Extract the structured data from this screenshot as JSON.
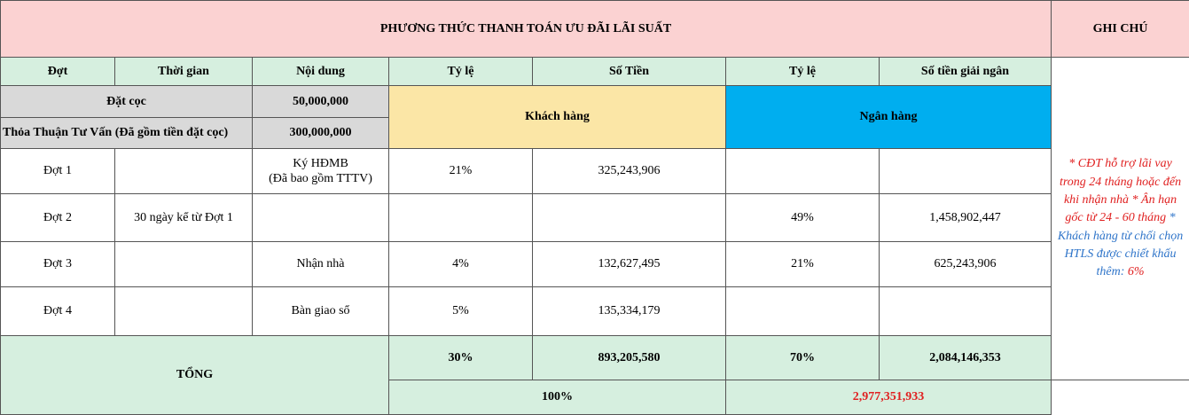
{
  "header": {
    "title": "PHƯƠNG THỨC THANH TOÁN ƯU ĐÃI LÃI SUẤT",
    "note_title": "GHI CHÚ"
  },
  "columns": {
    "dot": "Đợt",
    "thoi_gian": "Thời gian",
    "noi_dung": "Nội dung",
    "ty_le_kh": "Tỷ lệ",
    "so_tien": "Số Tiền",
    "ty_le_nh": "Tỷ lệ",
    "so_tien_giai_ngan": "Số tiền giải ngân"
  },
  "deposit": {
    "label": "Đặt cọc",
    "value": "50,000,000"
  },
  "consult": {
    "label": "Thỏa Thuận Tư Vấn (Đã gồm tiền đặt cọc)",
    "value": "300,000,000"
  },
  "groups": {
    "customer": "Khách hàng",
    "bank": "Ngân hàng"
  },
  "rows": [
    {
      "dot": "Đợt 1",
      "thoi_gian": "",
      "noi_dung_1": "Ký HĐMB",
      "noi_dung_2": "(Đã bao gồm TTTV)",
      "ty_le_kh": "21%",
      "so_tien": "325,243,906",
      "ty_le_nh": "",
      "giai_ngan": ""
    },
    {
      "dot": "Đợt 2",
      "thoi_gian": "30 ngày kể từ Đợt 1",
      "noi_dung_1": "",
      "noi_dung_2": "",
      "ty_le_kh": "",
      "so_tien": "",
      "ty_le_nh": "49%",
      "giai_ngan": "1,458,902,447"
    },
    {
      "dot": "Đợt 3",
      "thoi_gian": "",
      "noi_dung_1": "Nhận nhà",
      "noi_dung_2": "",
      "ty_le_kh": "4%",
      "so_tien": "132,627,495",
      "ty_le_nh": "21%",
      "giai_ngan": "625,243,906"
    },
    {
      "dot": "Đợt 4",
      "thoi_gian": "",
      "noi_dung_1": "Bàn giao sổ",
      "noi_dung_2": "",
      "ty_le_kh": "5%",
      "so_tien": "135,334,179",
      "ty_le_nh": "",
      "giai_ngan": ""
    }
  ],
  "total": {
    "label": "TỔNG",
    "ty_le_kh": "30%",
    "so_tien_kh": "893,205,580",
    "ty_le_nh": "70%",
    "so_tien_nh": "2,084,146,353",
    "ty_le_all": "100%",
    "so_tien_all": "2,977,351,933"
  },
  "notes": {
    "line1": "* CĐT hỗ trợ lãi vay trong 24 tháng hoặc đến khi nhận nhà",
    "line2": "* Ân hạn gốc từ 24 - 60 tháng",
    "line3": "* Khách hàng từ chối chọn HTLS được chiết khấu thêm: ",
    "line3_value": "6%"
  },
  "colors": {
    "header_pink": "#fbd2d2",
    "green": "#d6efdf",
    "grey": "#d9d9d9",
    "customer_yellow": "#fbe6a6",
    "bank_blue": "#00aeef",
    "highlight_red": "#e02020",
    "note_blue": "#2e74c9"
  }
}
